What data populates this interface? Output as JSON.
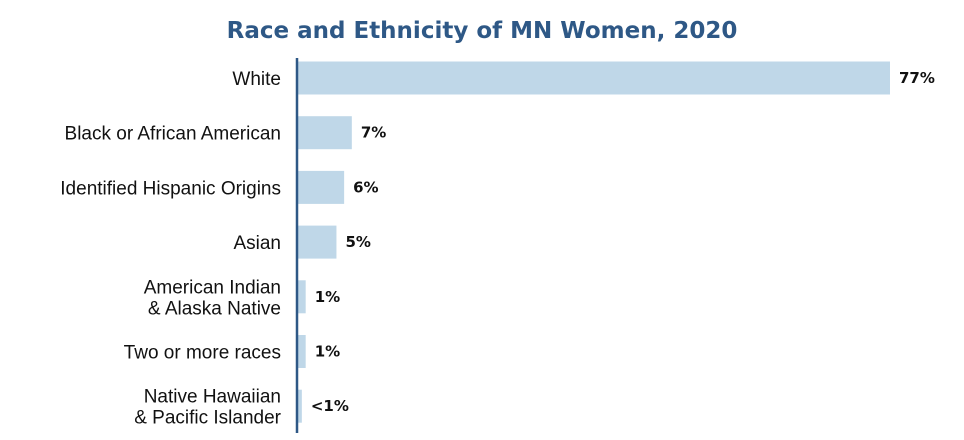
{
  "chart_data": {
    "type": "bar",
    "orientation": "horizontal",
    "title": "Race and Ethnicity of MN Women, 2020",
    "categories": [
      "White",
      "Black or African American",
      "Identified Hispanic Origins",
      "Asian",
      "American Indian & Alaska Native",
      "Two or more races",
      "Native Hawaiian & Pacific Islander"
    ],
    "category_lines": [
      [
        "White"
      ],
      [
        "Black or African American"
      ],
      [
        "Identified Hispanic Origins"
      ],
      [
        "Asian"
      ],
      [
        "American Indian",
        "& Alaska Native"
      ],
      [
        "Two or more races"
      ],
      [
        "Native Hawaiian",
        "& Pacific Islander"
      ]
    ],
    "values": [
      77,
      7,
      6,
      5,
      1,
      1,
      0.5
    ],
    "data_labels": [
      "77%",
      "7%",
      "6%",
      "5%",
      "1%",
      "1%",
      "<1%"
    ],
    "xlim": [
      0,
      77
    ],
    "grid": false,
    "legend": "none",
    "colors": {
      "bar": "#bfd7e8",
      "axis": "#2e5886",
      "title": "#2e5886",
      "text": "#111111"
    }
  }
}
